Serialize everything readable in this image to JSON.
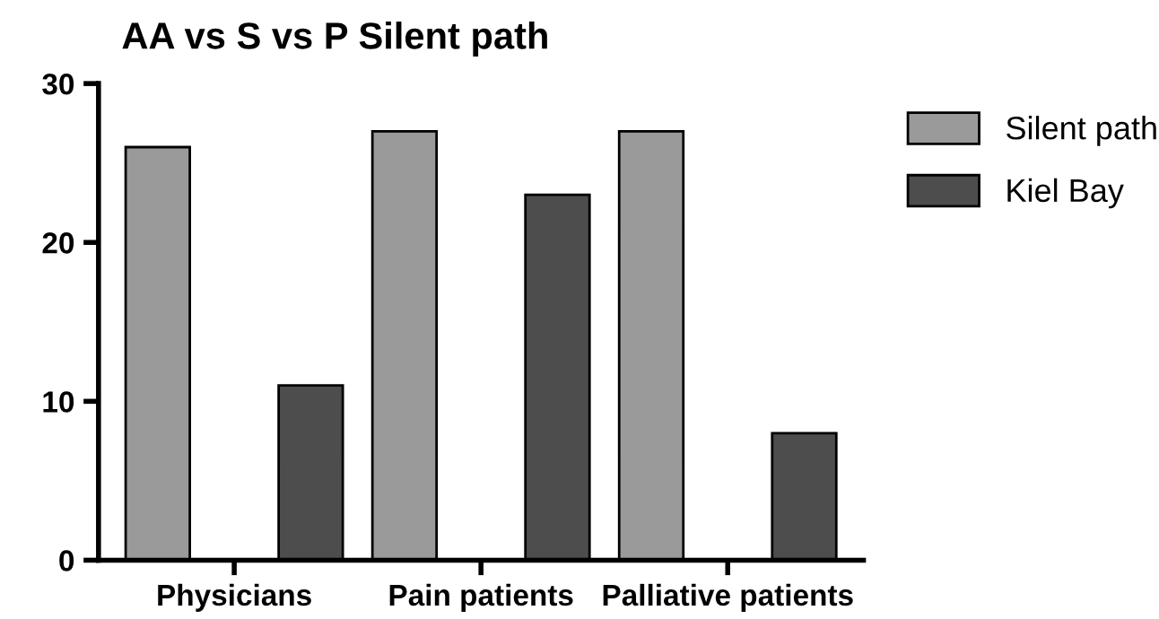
{
  "chart_data": {
    "type": "bar",
    "title": "AA vs S vs P Silent path",
    "categories": [
      "Physicians",
      "Pain patients",
      "Palliative patients"
    ],
    "series": [
      {
        "name": "Silent path",
        "color": "#9a9a9a",
        "values": [
          26,
          27,
          27
        ]
      },
      {
        "name": "Kiel Bay",
        "color": "#4d4d4d",
        "values": [
          11,
          23,
          8
        ]
      }
    ],
    "ylim": [
      0,
      30
    ],
    "yticks": [
      0,
      10,
      20,
      30
    ],
    "grid": false,
    "legend": "top right"
  }
}
